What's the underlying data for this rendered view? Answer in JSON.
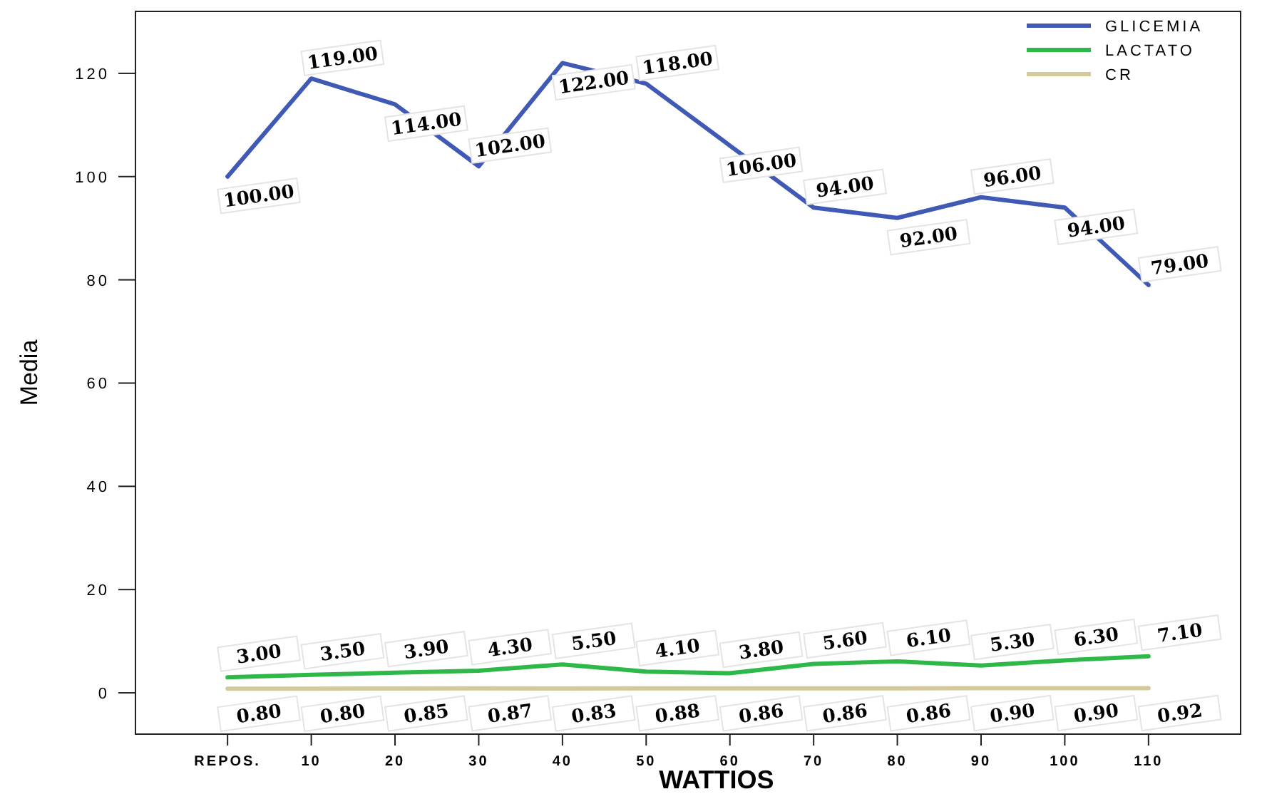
{
  "chart_data": {
    "type": "line",
    "xlabel": "WATTIOS",
    "ylabel": "Media",
    "categories": [
      "REPOS.",
      "10",
      "20",
      "30",
      "40",
      "50",
      "60",
      "70",
      "80",
      "90",
      "100",
      "110"
    ],
    "ylim": [
      -8,
      132
    ],
    "yticks": [
      0,
      20,
      40,
      60,
      80,
      100,
      120
    ],
    "grid": false,
    "legend": "top right",
    "marker": "none",
    "line_style": "solid",
    "series": [
      {
        "name": "GLICEMIA",
        "color": "#4059b5",
        "values": [
          100,
          119,
          114,
          102,
          122,
          118,
          106,
          94,
          92,
          96,
          94,
          79
        ],
        "value_labels": [
          "100.00",
          "119.00",
          "114.00",
          "102.00",
          "122.00",
          "118.00",
          "106.00",
          "94.00",
          "92.00",
          "96.00",
          "94.00",
          "79.00"
        ]
      },
      {
        "name": "LACTATO",
        "color": "#2fb84a",
        "values": [
          3.0,
          3.5,
          3.9,
          4.3,
          5.5,
          4.1,
          3.8,
          5.6,
          6.1,
          5.3,
          6.3,
          7.1
        ],
        "value_labels": [
          "3.00",
          "3.50",
          "3.90",
          "4.30",
          "5.50",
          "4.10",
          "3.80",
          "5.60",
          "6.10",
          "5.30",
          "6.30",
          "7.10"
        ]
      },
      {
        "name": "CR",
        "color": "#d4c99a",
        "values": [
          0.8,
          0.8,
          0.85,
          0.87,
          0.83,
          0.88,
          0.86,
          0.86,
          0.86,
          0.9,
          0.9,
          0.92
        ],
        "value_labels": [
          "0.80",
          "0.80",
          "0.85",
          "0.87",
          "0.83",
          "0.88",
          "0.86",
          "0.86",
          "0.86",
          "0.90",
          "0.90",
          "0.92"
        ]
      }
    ]
  }
}
